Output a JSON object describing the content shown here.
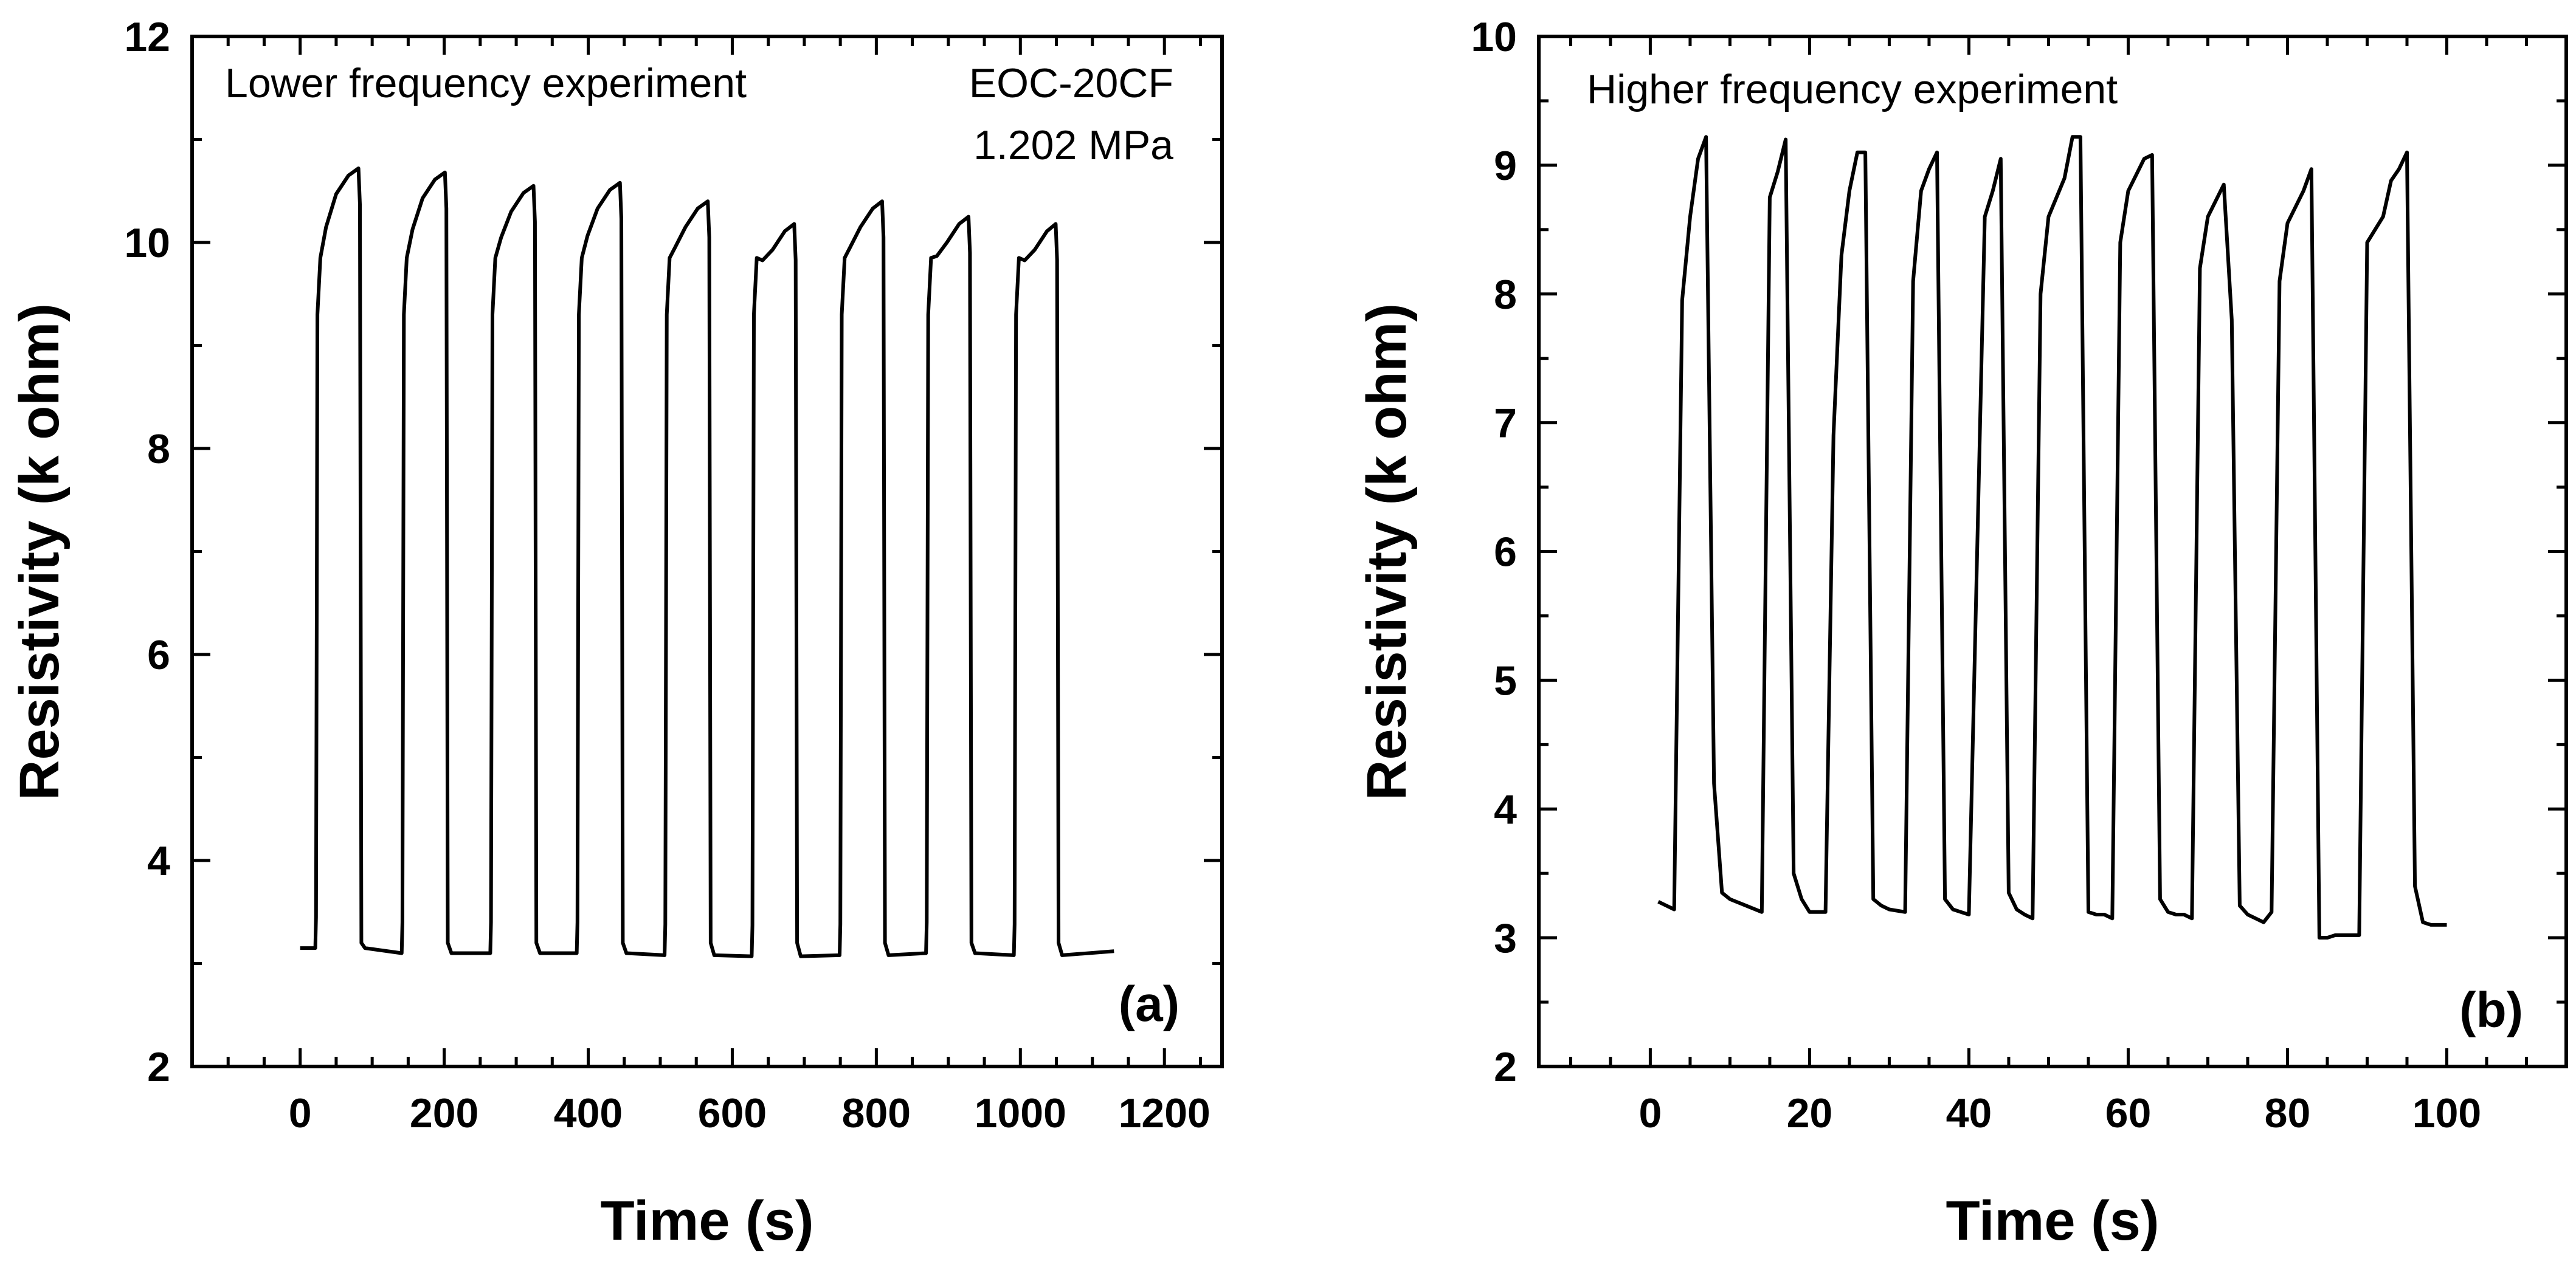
{
  "chart_data": [
    {
      "type": "line",
      "panel": "(a)",
      "title": "",
      "xlabel": "Time (s)",
      "ylabel": "Resistivity (k ohm)",
      "xlim": [
        -150,
        1280
      ],
      "ylim": [
        2,
        12
      ],
      "xticks": [
        0,
        200,
        400,
        600,
        800,
        1000,
        1200
      ],
      "xtick_labels": [
        "0",
        "200",
        "400",
        "600",
        "800",
        "1000",
        "1200"
      ],
      "xminor": 50,
      "yticks": [
        2,
        4,
        6,
        8,
        10,
        12
      ],
      "ytick_labels": [
        "2",
        "4",
        "6",
        "8",
        "10",
        "12"
      ],
      "yminor": 1,
      "annotations": [
        "Lower frequency experiment",
        "EOC-20CF",
        "1.202 MPa"
      ],
      "series": [
        {
          "name": "Lower frequency experiment",
          "cycles": [
            {
              "t_on": 22,
              "t_off": 85,
              "base": 3.15,
              "peak": 10.72
            },
            {
              "t_on": 142,
              "t_off": 205,
              "base": 3.1,
              "peak": 10.68
            },
            {
              "t_on": 265,
              "t_off": 328,
              "base": 3.1,
              "peak": 10.55
            },
            {
              "t_on": 385,
              "t_off": 448,
              "base": 3.1,
              "peak": 10.58
            },
            {
              "t_on": 507,
              "t_off": 570,
              "base": 3.08,
              "peak": 10.4
            },
            {
              "t_on": 628,
              "t_off": 690,
              "base": 3.07,
              "peak": 10.18
            },
            {
              "t_on": 750,
              "t_off": 812,
              "base": 3.08,
              "peak": 10.4
            },
            {
              "t_on": 870,
              "t_off": 932,
              "base": 3.1,
              "peak": 10.25
            },
            {
              "t_on": 992,
              "t_off": 1053,
              "base": 3.08,
              "peak": 10.18
            }
          ],
          "start": [
            0,
            3.15
          ],
          "end": [
            1130,
            3.12
          ]
        }
      ]
    },
    {
      "type": "line",
      "panel": "(b)",
      "title": "",
      "xlabel": "Time (s)",
      "ylabel": "Resistivity (k ohm)",
      "xlim": [
        -14,
        115
      ],
      "ylim": [
        2,
        10
      ],
      "xticks": [
        0,
        20,
        40,
        60,
        80,
        100
      ],
      "xtick_labels": [
        "0",
        "20",
        "40",
        "60",
        "80",
        "100"
      ],
      "xminor": 5,
      "yticks": [
        2,
        3,
        4,
        5,
        6,
        7,
        8,
        9,
        10
      ],
      "ytick_labels": [
        "2",
        "3",
        "4",
        "5",
        "6",
        "7",
        "8",
        "9",
        "10"
      ],
      "yminor": 0.5,
      "annotations": [
        "Higher frequency experiment"
      ],
      "series": [
        {
          "name": "Higher frequency experiment",
          "x": [
            1,
            2,
            3,
            4,
            5,
            6,
            7,
            8,
            9,
            10,
            12,
            14,
            15,
            16,
            17,
            18,
            19,
            20,
            22,
            23,
            24,
            25,
            26,
            27,
            28,
            29,
            30,
            32,
            33,
            34,
            35,
            36,
            37,
            38,
            39,
            40,
            42,
            43,
            44,
            45,
            46,
            47,
            48,
            49,
            50,
            52,
            53,
            54,
            55,
            56,
            57,
            58,
            59,
            60,
            62,
            63,
            64,
            65,
            66,
            67,
            68,
            69,
            70,
            72,
            73,
            74,
            75,
            76,
            77,
            78,
            79,
            80,
            82,
            83,
            84,
            85,
            86,
            87,
            88,
            89,
            90,
            92,
            93,
            94,
            95,
            96,
            97,
            98,
            99,
            100
          ],
          "y": [
            3.28,
            3.25,
            3.22,
            7.95,
            8.6,
            9.05,
            9.22,
            4.2,
            3.35,
            3.3,
            3.25,
            3.2,
            8.75,
            8.95,
            9.2,
            3.5,
            3.3,
            3.2,
            3.2,
            6.9,
            8.3,
            8.8,
            9.1,
            9.1,
            3.3,
            3.25,
            3.22,
            3.2,
            8.1,
            8.8,
            8.97,
            9.1,
            3.3,
            3.22,
            3.2,
            3.18,
            8.6,
            8.8,
            9.05,
            3.35,
            3.22,
            3.18,
            3.15,
            8.0,
            8.6,
            8.9,
            9.22,
            9.22,
            3.2,
            3.18,
            3.18,
            3.15,
            8.4,
            8.8,
            9.05,
            9.08,
            3.3,
            3.2,
            3.18,
            3.18,
            3.15,
            8.2,
            8.6,
            8.85,
            7.8,
            3.25,
            3.18,
            3.15,
            3.12,
            3.2,
            8.1,
            8.55,
            8.8,
            8.97,
            3.0,
            3.0,
            3.02,
            3.02,
            3.02,
            3.02,
            8.4,
            8.6,
            8.88,
            8.97,
            9.1,
            3.4,
            3.12,
            3.1,
            3.1,
            3.1
          ]
        }
      ]
    }
  ]
}
